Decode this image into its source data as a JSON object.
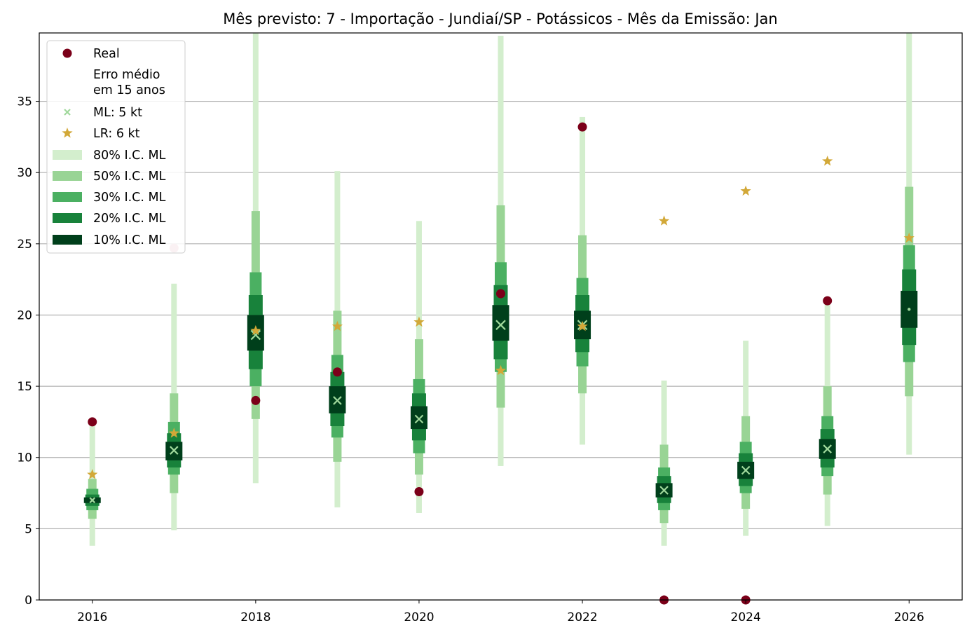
{
  "chart_data": {
    "type": "scatter",
    "title": "Mês previsto: 7 - Importação - Jundiaí/SP - Potássicos - Mês da Emissão: Jan",
    "xlabel": "",
    "ylabel": "",
    "xlim": [
      2015.35,
      2026.65
    ],
    "ylim": [
      0,
      39.8
    ],
    "xticks": [
      "2016",
      "2018",
      "2020",
      "2022",
      "2024",
      "2026"
    ],
    "yticks": [
      "0",
      "5",
      "10",
      "15",
      "20",
      "25",
      "30",
      "35"
    ],
    "grid": "horizontal",
    "legend_position": "top-left",
    "colors": {
      "real": "#7b0019",
      "real_faded": "#dca3b1",
      "ml": "#9fd89b",
      "lr": "#d2a838",
      "ci80": "#d3eecd",
      "ci50": "#99d495",
      "ci30": "#4bb062",
      "ci20": "#18823b",
      "ci10": "#003f1b"
    },
    "legend": [
      {
        "key": "real",
        "label": "Real"
      },
      {
        "key": "note",
        "label": "Erro médio\nem 15 anos"
      },
      {
        "key": "ml",
        "label": "ML: 5 kt"
      },
      {
        "key": "lr",
        "label": "LR: 6 kt"
      },
      {
        "key": "ci80",
        "label": "80% I.C. ML"
      },
      {
        "key": "ci50",
        "label": "50% I.C. ML"
      },
      {
        "key": "ci30",
        "label": "30% I.C. ML"
      },
      {
        "key": "ci20",
        "label": "20% I.C. ML"
      },
      {
        "key": "ci10",
        "label": "10% I.C. ML"
      }
    ],
    "years": [
      2016,
      2017,
      2018,
      2019,
      2020,
      2021,
      2022,
      2023,
      2024,
      2025,
      2026
    ],
    "series": [
      {
        "name": "Real",
        "values": [
          12.5,
          24.7,
          14.0,
          16.0,
          7.6,
          21.5,
          33.2,
          0.0,
          0.0,
          21.0,
          null
        ]
      },
      {
        "name": "ML: 5 kt",
        "values": [
          7.0,
          10.5,
          18.6,
          14.0,
          12.7,
          19.3,
          19.3,
          7.7,
          9.1,
          10.6,
          20.4
        ]
      },
      {
        "name": "LR: 6 kt",
        "values": [
          8.8,
          11.7,
          18.9,
          19.2,
          19.5,
          16.1,
          19.2,
          26.6,
          28.7,
          30.8,
          25.4
        ]
      }
    ],
    "intervals": {
      "ci80": [
        [
          3.8,
          12.2
        ],
        [
          4.9,
          22.2
        ],
        [
          8.2,
          39.8
        ],
        [
          6.5,
          30.1
        ],
        [
          6.1,
          26.6
        ],
        [
          9.4,
          39.6
        ],
        [
          10.9,
          33.9
        ],
        [
          3.8,
          15.4
        ],
        [
          4.5,
          18.2
        ],
        [
          5.2,
          20.8
        ],
        [
          10.2,
          39.8
        ]
      ],
      "ci50": [
        [
          5.7,
          8.5
        ],
        [
          7.5,
          14.5
        ],
        [
          12.7,
          27.3
        ],
        [
          9.7,
          20.3
        ],
        [
          8.8,
          18.3
        ],
        [
          13.5,
          27.7
        ],
        [
          14.5,
          25.6
        ],
        [
          5.4,
          10.9
        ],
        [
          6.4,
          12.9
        ],
        [
          7.4,
          15.0
        ],
        [
          14.3,
          29.0
        ]
      ],
      "ci30": [
        [
          6.3,
          7.8
        ],
        [
          8.8,
          12.5
        ],
        [
          15.0,
          23.0
        ],
        [
          11.4,
          17.2
        ],
        [
          10.3,
          15.5
        ],
        [
          16.0,
          23.7
        ],
        [
          16.4,
          22.6
        ],
        [
          6.3,
          9.3
        ],
        [
          7.5,
          11.1
        ],
        [
          8.7,
          12.9
        ],
        [
          16.7,
          24.9
        ]
      ],
      "ci20": [
        [
          6.6,
          7.4
        ],
        [
          9.3,
          11.7
        ],
        [
          16.2,
          21.4
        ],
        [
          12.2,
          16.0
        ],
        [
          11.2,
          14.5
        ],
        [
          16.9,
          22.1
        ],
        [
          17.4,
          21.4
        ],
        [
          6.8,
          8.7
        ],
        [
          8.0,
          10.3
        ],
        [
          9.3,
          12.0
        ],
        [
          17.9,
          23.2
        ]
      ],
      "ci10": [
        [
          6.8,
          7.2
        ],
        [
          9.8,
          11.1
        ],
        [
          17.5,
          20.0
        ],
        [
          13.1,
          15.0
        ],
        [
          12.0,
          13.6
        ],
        [
          18.2,
          20.7
        ],
        [
          18.3,
          20.3
        ],
        [
          7.2,
          8.2
        ],
        [
          8.5,
          9.7
        ],
        [
          9.9,
          11.3
        ],
        [
          19.1,
          21.7
        ]
      ]
    }
  }
}
